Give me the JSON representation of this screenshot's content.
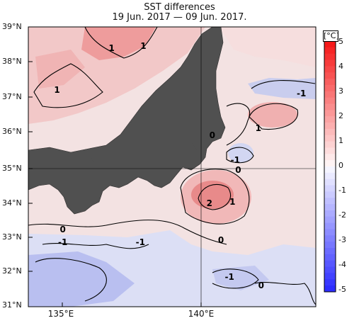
{
  "chart_data": {
    "type": "heatmap",
    "title": "SST differences",
    "subtitle": "19 Jun. 2017 — 09 Jun. 2017.",
    "colorbar_unit": "[°C]",
    "colorbar_ticks": [
      "5",
      "4",
      "3",
      "2",
      "1",
      "0",
      "-1",
      "-2",
      "-3",
      "-4",
      "-5"
    ],
    "color_range": [
      -5,
      5
    ],
    "latitude_labels": [
      "39°N",
      "38°N",
      "37°N",
      "36°N",
      "35°N",
      "34°N",
      "33°N",
      "32°N",
      "31°N"
    ],
    "longitude_labels": [
      "135°E",
      "140°E"
    ],
    "lat_range": [
      31,
      39
    ],
    "lon_range": [
      134,
      144
    ],
    "grid": true,
    "contour_labels": [
      {
        "text": "1",
        "lon": 136.9,
        "lat": 38.4
      },
      {
        "text": "1",
        "lon": 138.0,
        "lat": 38.45
      },
      {
        "text": "1",
        "lon": 135.0,
        "lat": 37.2
      },
      {
        "text": "-1",
        "lon": 143.5,
        "lat": 37.1
      },
      {
        "text": "0",
        "lon": 140.4,
        "lat": 35.9
      },
      {
        "text": "1",
        "lon": 142.0,
        "lat": 36.1
      },
      {
        "text": "-1",
        "lon": 141.2,
        "lat": 35.2
      },
      {
        "text": "0",
        "lon": 141.3,
        "lat": 34.9
      },
      {
        "text": "2",
        "lon": 140.3,
        "lat": 33.95
      },
      {
        "text": "1",
        "lon": 141.1,
        "lat": 34.0
      },
      {
        "text": "0",
        "lon": 135.2,
        "lat": 33.2
      },
      {
        "text": "-1",
        "lon": 135.2,
        "lat": 32.85
      },
      {
        "text": "-1",
        "lon": 137.9,
        "lat": 32.85
      },
      {
        "text": "0",
        "lon": 140.7,
        "lat": 32.9
      },
      {
        "text": "-1",
        "lon": 141.0,
        "lat": 31.85
      },
      {
        "text": "0",
        "lon": 142.1,
        "lat": 31.6
      }
    ]
  }
}
